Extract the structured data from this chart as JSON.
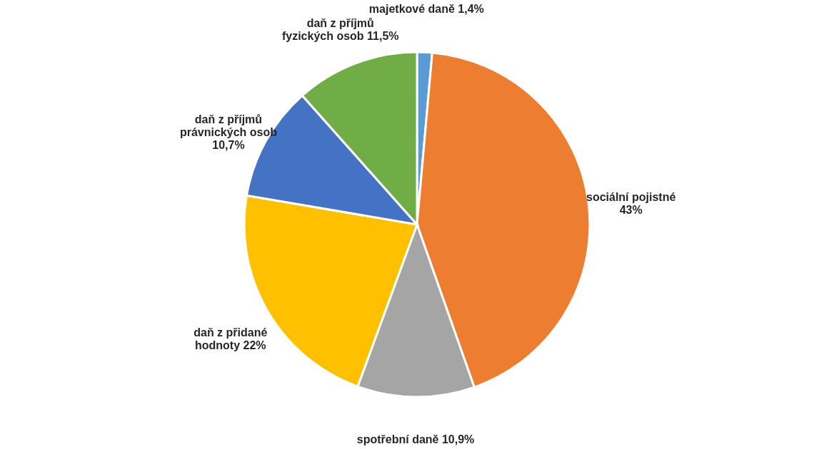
{
  "chart_data": {
    "type": "pie",
    "categories": [
      "majetkové daně",
      "sociální pojistné",
      "spotřební daně",
      "daň z přidané hodnoty",
      "daň z příjmů právnických osob",
      "daň z příjmů fyzických osob"
    ],
    "values": [
      1.4,
      43,
      10.9,
      22,
      10.7,
      11.5
    ],
    "colors": [
      "#5b9bd5",
      "#ed7d31",
      "#a5a5a5",
      "#ffc000",
      "#4472c4",
      "#70ad47"
    ],
    "value_labels": [
      "1,4%",
      "43%",
      "10,9%",
      "22%",
      "10,7%",
      "11,5%"
    ],
    "legend": false
  }
}
